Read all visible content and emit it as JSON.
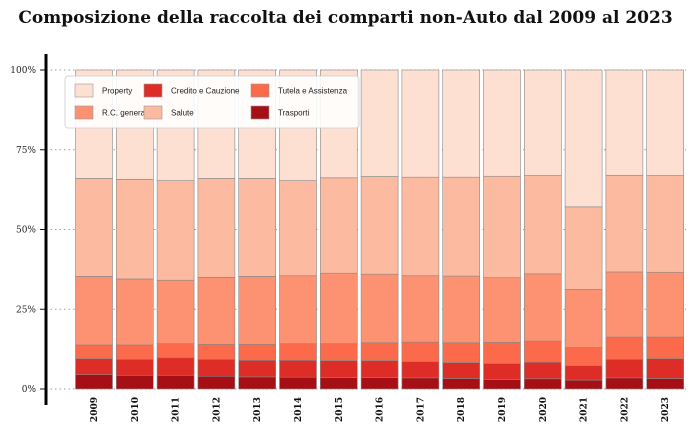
{
  "chart_data": {
    "type": "bar",
    "stacked": true,
    "title": "Composizione della raccolta dei comparti non-Auto dal 2009 al 2023",
    "xlabel": "",
    "ylabel": "",
    "ylim": [
      0,
      100
    ],
    "y_ticks": [
      "0%",
      "25%",
      "50%",
      "75%",
      "100%"
    ],
    "grid": "horizontal dotted",
    "legend_position": "top-left",
    "categories": [
      "2009",
      "2010",
      "2011",
      "2012",
      "2013",
      "2014",
      "2015",
      "2016",
      "2017",
      "2018",
      "2019",
      "2020",
      "2021",
      "2022",
      "2023"
    ],
    "series": [
      {
        "name": "Trasporti",
        "color": "#a50f15",
        "values": [
          4.5,
          4.3,
          4.3,
          4.0,
          3.8,
          3.7,
          3.6,
          3.6,
          3.5,
          3.3,
          3.0,
          3.2,
          2.8,
          3.5,
          3.3
        ]
      },
      {
        "name": "Credito e Cauzione",
        "color": "#de2d26",
        "values": [
          5.0,
          5.0,
          5.5,
          5.3,
          5.2,
          5.3,
          5.3,
          5.3,
          5.1,
          5.0,
          5.0,
          5.2,
          4.5,
          5.8,
          6.2
        ]
      },
      {
        "name": "Tutela e Assistenza",
        "color": "#fb6a4a",
        "values": [
          4.3,
          4.5,
          4.4,
          4.7,
          5.0,
          5.2,
          5.3,
          5.6,
          6.1,
          6.2,
          6.6,
          6.6,
          5.7,
          7.0,
          6.8
        ]
      },
      {
        "name": "R.C. generale",
        "color": "#fc9272",
        "values": [
          21.5,
          20.7,
          19.9,
          21.0,
          21.3,
          21.3,
          22.1,
          21.5,
          20.8,
          20.9,
          20.3,
          21.1,
          18.2,
          20.4,
          20.3
        ]
      },
      {
        "name": "Salute",
        "color": "#fcbba1",
        "values": [
          30.7,
          31.2,
          31.2,
          31.0,
          30.7,
          29.8,
          29.9,
          30.6,
          30.9,
          31.0,
          31.8,
          30.8,
          25.9,
          30.3,
          30.3
        ]
      },
      {
        "name": "Property",
        "color": "#fee0d2",
        "values": [
          34.0,
          34.3,
          34.7,
          34.0,
          34.0,
          34.7,
          33.8,
          33.4,
          33.6,
          33.6,
          33.3,
          33.1,
          42.9,
          33.0,
          33.1
        ]
      }
    ],
    "legend_order": [
      "Property",
      "R.C. generale",
      "Credito e Cauzione",
      "Salute",
      "Tutela e Assistenza",
      "Trasporti"
    ]
  }
}
